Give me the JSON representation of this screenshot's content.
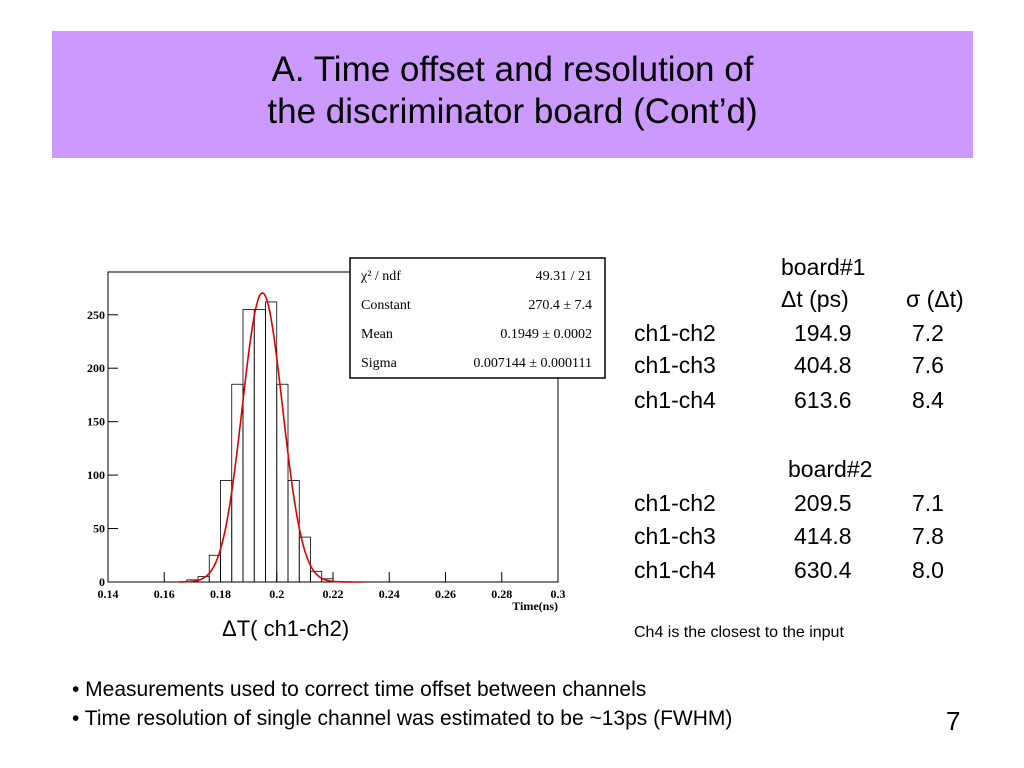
{
  "slide": {
    "title_line1": "A. Time offset and resolution of",
    "title_line2": "the discriminator board (Cont’d)",
    "page_number": "7"
  },
  "histogram": {
    "caption": "ΔT( ch1-ch2)",
    "xlabel": "Time(ns)",
    "stats": [
      {
        "label": "χ² / ndf",
        "value": "49.31 / 21"
      },
      {
        "label": "Constant",
        "value": "270.4 ± 7.4"
      },
      {
        "label": "Mean",
        "value": "0.1949 ± 0.0002"
      },
      {
        "label": "Sigma",
        "value": "0.007144 ± 0.000111"
      }
    ]
  },
  "chart_data": {
    "type": "bar",
    "xlabel": "Time(ns)",
    "ylabel": "",
    "xlim": [
      0.14,
      0.3
    ],
    "ylim": [
      0,
      290
    ],
    "x_ticks": [
      0.14,
      0.16,
      0.18,
      0.2,
      0.22,
      0.24,
      0.26,
      0.28,
      0.3
    ],
    "x_tick_labels": [
      "0.14",
      "0.16",
      "0.18",
      "0.2",
      "0.22",
      "0.24",
      "0.26",
      "0.28",
      "0.3"
    ],
    "y_ticks": [
      0,
      50,
      100,
      150,
      200,
      250
    ],
    "y_tick_labels": [
      "0",
      "50",
      "100",
      "150",
      "200",
      "250"
    ],
    "bin_width": 0.004,
    "bins_start": [
      0.168,
      0.172,
      0.176,
      0.18,
      0.184,
      0.188,
      0.192,
      0.196,
      0.2,
      0.204,
      0.208,
      0.212,
      0.216
    ],
    "counts": [
      2,
      5,
      25,
      95,
      185,
      255,
      255,
      262,
      185,
      95,
      42,
      10,
      3
    ],
    "fit": {
      "function": "gaus",
      "constant": 270.4,
      "mean": 0.1949,
      "sigma": 0.007144,
      "color": "#dd0000"
    }
  },
  "board1": {
    "header": "board#1",
    "col_dt": "Δt (ps)",
    "col_sigma": "σ (Δt)",
    "rows": [
      {
        "pair": "ch1-ch2",
        "dt": "194.9",
        "sigma": "7.2"
      },
      {
        "pair": "ch1-ch3",
        "dt": "404.8",
        "sigma": "7.6"
      },
      {
        "pair": "ch1-ch4",
        "dt": "613.6",
        "sigma": "8.4"
      }
    ]
  },
  "board2": {
    "header": "board#2",
    "rows": [
      {
        "pair": "ch1-ch2",
        "dt": "209.5",
        "sigma": "7.1"
      },
      {
        "pair": "ch1-ch3",
        "dt": "414.8",
        "sigma": "7.8"
      },
      {
        "pair": "ch1-ch4",
        "dt": "630.4",
        "sigma": "8.0"
      }
    ]
  },
  "note": "Ch4 is the closest to the input",
  "bullets": [
    "• Measurements used to correct time offset between channels",
    "• Time resolution of single channel was estimated to be ~13ps (FWHM)"
  ],
  "colors": {
    "title_band": "#cc99ff",
    "fit_curve": "#dd0000"
  }
}
